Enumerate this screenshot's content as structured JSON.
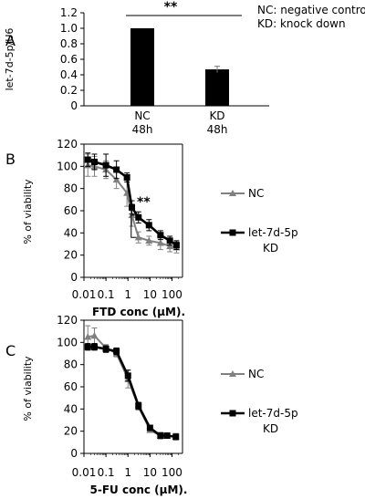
{
  "chart_data": [
    {
      "panel": "A",
      "type": "bar",
      "ylabel": "let-7d-5p/U6",
      "ylim": [
        0,
        1.2
      ],
      "yticks": [
        0,
        0.2,
        0.4,
        0.6,
        0.8,
        1.0,
        1.2
      ],
      "categories": [
        "NC\n48h",
        "KD\n48h"
      ],
      "values": [
        1.0,
        0.47
      ],
      "errors": [
        0.0,
        0.04
      ],
      "significance": "**",
      "legend_lines": [
        "NC: negative control",
        "KD: knock down"
      ],
      "colors": {
        "bar": "#000000"
      }
    },
    {
      "panel": "B",
      "type": "line",
      "xlabel": "FTD conc (μM).",
      "ylabel": "% of viability",
      "xscale": "log",
      "xlim": [
        0.01,
        300
      ],
      "xticks": [
        0.01,
        0.1,
        1,
        10,
        100
      ],
      "xticklabels": [
        "0.01",
        "0.1",
        "1",
        "10",
        "100"
      ],
      "ylim": [
        0,
        120
      ],
      "yticks": [
        0,
        20,
        40,
        60,
        80,
        100,
        120
      ],
      "significance": "**",
      "series": [
        {
          "name": "NC",
          "marker": "triangle",
          "color": "#808080",
          "x": [
            0.015,
            0.03,
            0.1,
            0.3,
            0.9,
            1.5,
            3,
            9,
            30,
            80,
            160
          ],
          "y": [
            101,
            100,
            97,
            88,
            76,
            56,
            36,
            33,
            31,
            28,
            27
          ],
          "err": [
            10,
            9,
            8,
            8,
            12,
            10,
            5,
            4,
            6,
            5,
            5
          ]
        },
        {
          "name": "let-7d-5p\nKD",
          "marker": "square",
          "color": "#000000",
          "x": [
            0.015,
            0.03,
            0.1,
            0.3,
            0.9,
            1.5,
            3,
            9,
            30,
            80,
            160
          ],
          "y": [
            106,
            104,
            101,
            97,
            90,
            63,
            54,
            47,
            38,
            33,
            29
          ],
          "err": [
            6,
            7,
            10,
            8,
            4,
            6,
            5,
            5,
            4,
            4,
            4
          ]
        }
      ]
    },
    {
      "panel": "C",
      "type": "line",
      "xlabel": "5-FU conc (μM).",
      "ylabel": "% of viability",
      "xscale": "log",
      "xlim": [
        0.01,
        300
      ],
      "xticks": [
        0.01,
        0.1,
        1,
        10,
        100
      ],
      "xticklabels": [
        "0.01",
        "0.1",
        "1",
        "10",
        "100"
      ],
      "ylim": [
        0,
        120
      ],
      "yticks": [
        0,
        20,
        40,
        60,
        80,
        100,
        120
      ],
      "series": [
        {
          "name": "NC",
          "marker": "triangle",
          "color": "#808080",
          "x": [
            0.015,
            0.03,
            0.1,
            0.3,
            1,
            3,
            10,
            30,
            60,
            150
          ],
          "y": [
            105,
            106,
            95,
            90,
            67,
            42,
            21,
            16,
            16,
            15
          ],
          "err": [
            10,
            7,
            3,
            3,
            8,
            3,
            2,
            3,
            2,
            3
          ]
        },
        {
          "name": "let-7d-5p\nKD",
          "marker": "square",
          "color": "#000000",
          "x": [
            0.015,
            0.03,
            0.1,
            0.3,
            1,
            3,
            10,
            30,
            60,
            150
          ],
          "y": [
            96,
            96,
            94,
            92,
            70,
            43,
            23,
            16,
            16,
            15
          ],
          "err": [
            3,
            3,
            3,
            3,
            5,
            3,
            2,
            2,
            2,
            2
          ]
        }
      ]
    }
  ]
}
